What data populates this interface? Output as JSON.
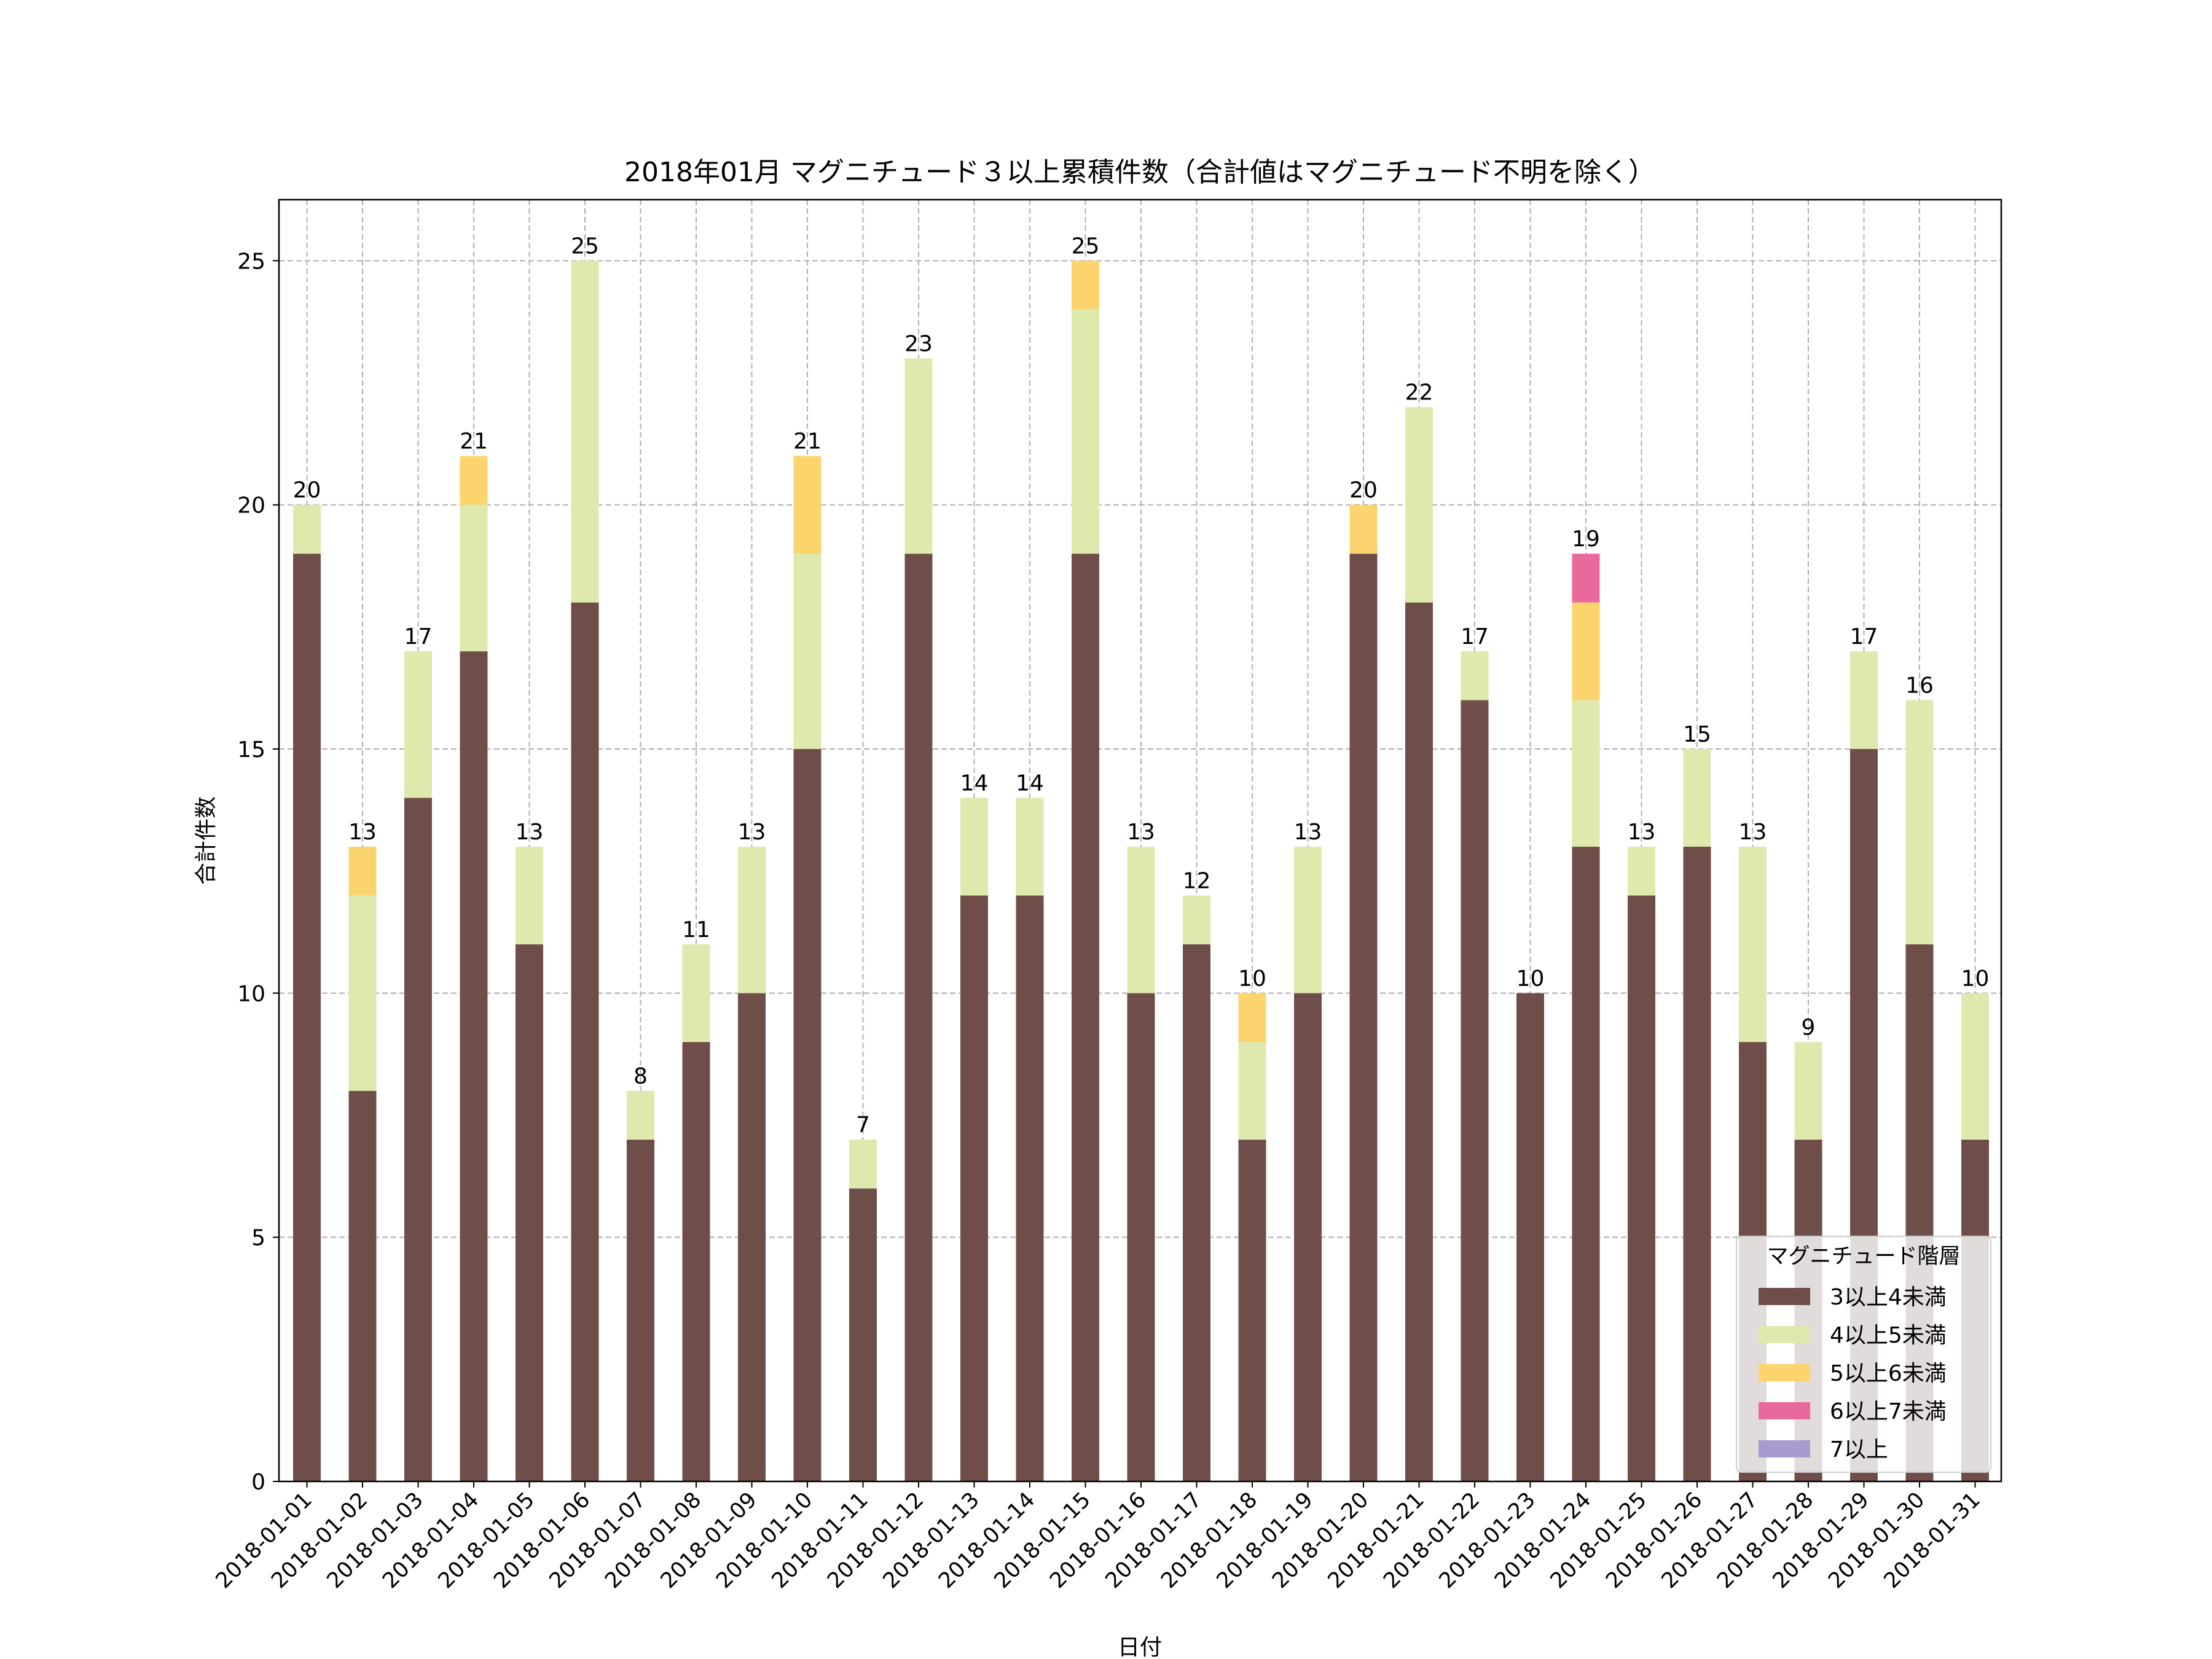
{
  "chart_data": {
    "type": "bar",
    "stacked": true,
    "title": "2018年01月 マグニチュード３以上累積件数（合計値はマグニチュード不明を除く）",
    "xlabel": "日付",
    "ylabel": "合計件数",
    "ylim": [
      0,
      26.25
    ],
    "yticks": [
      0,
      5,
      10,
      15,
      20,
      25
    ],
    "grid": true,
    "categories": [
      "2018-01-01",
      "2018-01-02",
      "2018-01-03",
      "2018-01-04",
      "2018-01-05",
      "2018-01-06",
      "2018-01-07",
      "2018-01-08",
      "2018-01-09",
      "2018-01-10",
      "2018-01-11",
      "2018-01-12",
      "2018-01-13",
      "2018-01-14",
      "2018-01-15",
      "2018-01-16",
      "2018-01-17",
      "2018-01-18",
      "2018-01-19",
      "2018-01-20",
      "2018-01-21",
      "2018-01-22",
      "2018-01-23",
      "2018-01-24",
      "2018-01-25",
      "2018-01-26",
      "2018-01-27",
      "2018-01-28",
      "2018-01-29",
      "2018-01-30",
      "2018-01-31"
    ],
    "totals": [
      20,
      13,
      17,
      21,
      13,
      25,
      8,
      11,
      13,
      21,
      7,
      23,
      14,
      14,
      25,
      13,
      12,
      10,
      13,
      20,
      22,
      17,
      10,
      19,
      13,
      15,
      13,
      9,
      17,
      16,
      10
    ],
    "series": [
      {
        "name": "3以上4未満",
        "color": "#6f4e4a",
        "values": [
          19,
          8,
          14,
          17,
          11,
          18,
          7,
          9,
          10,
          15,
          6,
          19,
          12,
          12,
          19,
          10,
          11,
          7,
          10,
          19,
          18,
          16,
          10,
          13,
          12,
          13,
          9,
          7,
          15,
          11,
          7
        ]
      },
      {
        "name": "4以上5未満",
        "color": "#dfe8ad",
        "values": [
          1,
          4,
          3,
          3,
          2,
          7,
          1,
          2,
          3,
          4,
          1,
          4,
          2,
          2,
          5,
          3,
          1,
          2,
          3,
          0,
          4,
          1,
          0,
          3,
          1,
          2,
          4,
          2,
          2,
          5,
          3
        ]
      },
      {
        "name": "5以上6未満",
        "color": "#fbd46e",
        "values": [
          0,
          1,
          0,
          1,
          0,
          0,
          0,
          0,
          0,
          2,
          0,
          0,
          0,
          0,
          1,
          0,
          0,
          1,
          0,
          1,
          0,
          0,
          0,
          2,
          0,
          0,
          0,
          0,
          0,
          0,
          0
        ]
      },
      {
        "name": "6以上7未満",
        "color": "#e9699c",
        "values": [
          0,
          0,
          0,
          0,
          0,
          0,
          0,
          0,
          0,
          0,
          0,
          0,
          0,
          0,
          0,
          0,
          0,
          0,
          0,
          0,
          0,
          0,
          0,
          1,
          0,
          0,
          0,
          0,
          0,
          0,
          0
        ]
      },
      {
        "name": "7以上",
        "color": "#a89bd0",
        "values": [
          0,
          0,
          0,
          0,
          0,
          0,
          0,
          0,
          0,
          0,
          0,
          0,
          0,
          0,
          0,
          0,
          0,
          0,
          0,
          0,
          0,
          0,
          0,
          0,
          0,
          0,
          0,
          0,
          0,
          0,
          0
        ]
      }
    ],
    "legend": {
      "title": "マグニチュード階層",
      "placement": "lower-right"
    }
  }
}
